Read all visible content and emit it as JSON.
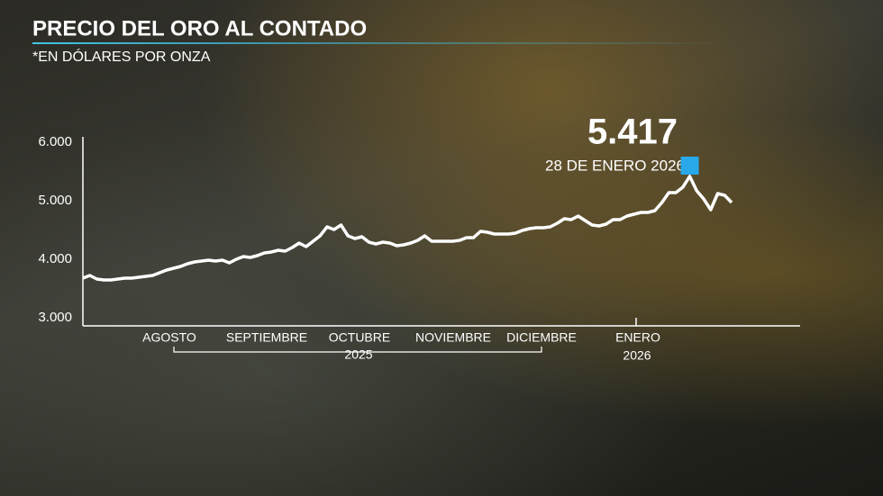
{
  "chart_data": {
    "type": "line",
    "title": "PRECIO DEL ORO AL CONTADO",
    "subtitle": "*EN DÓLARES POR ONZA",
    "months": [
      "AGOSTO",
      "SEPTIEMBRE",
      "OCTUBRE",
      "NOVIEMBRE",
      "DICIEMBRE",
      "ENERO"
    ],
    "years": [
      "2025",
      "2026"
    ],
    "annotation": {
      "value": "5.417",
      "date": "28 DE ENERO 2026"
    },
    "color": "#ffffff",
    "marker_color": "#29a8ea",
    "ylim": [
      3000,
      6000
    ],
    "yticks": [
      {
        "value": 3000,
        "label": "3.000"
      },
      {
        "value": 4000,
        "label": "4.000"
      },
      {
        "value": 5000,
        "label": "5.000"
      },
      {
        "value": 6000,
        "label": "6.000"
      }
    ],
    "values": [
      3677,
      3723,
      3662,
      3646,
      3646,
      3662,
      3677,
      3677,
      3692,
      3708,
      3723,
      3769,
      3815,
      3846,
      3877,
      3923,
      3954,
      3969,
      3985,
      3969,
      3985,
      3938,
      4000,
      4046,
      4031,
      4062,
      4108,
      4123,
      4154,
      4138,
      4200,
      4277,
      4215,
      4308,
      4400,
      4554,
      4508,
      4585,
      4400,
      4354,
      4385,
      4292,
      4262,
      4292,
      4277,
      4231,
      4246,
      4277,
      4323,
      4400,
      4308,
      4308,
      4308,
      4308,
      4323,
      4369,
      4369,
      4477,
      4462,
      4431,
      4431,
      4431,
      4446,
      4492,
      4523,
      4538,
      4538,
      4554,
      4615,
      4692,
      4677,
      4738,
      4662,
      4585,
      4569,
      4600,
      4677,
      4677,
      4738,
      4769,
      4800,
      4800,
      4831,
      4969,
      5138,
      5138,
      5231,
      5417,
      5169,
      5031,
      4846,
      5123,
      5092,
      4969
    ]
  }
}
